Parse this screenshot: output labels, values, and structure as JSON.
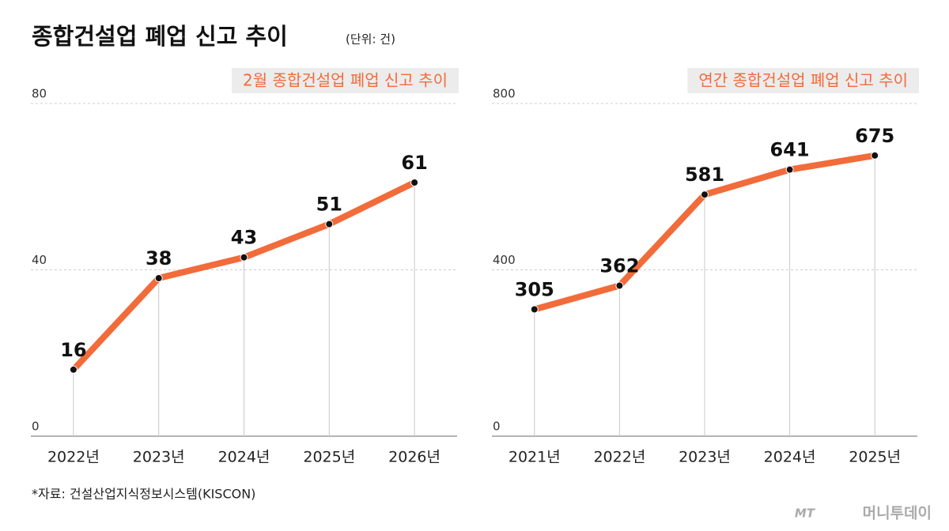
{
  "title": "종합건설업 폐업 신고 추이",
  "unit": "(단위: 건)",
  "chart_data": [
    {
      "type": "line",
      "title": "2월 종합건설업 폐업 신고 추이",
      "categories": [
        "2022년",
        "2023년",
        "2024년",
        "2025년",
        "2026년"
      ],
      "values": [
        16,
        38,
        43,
        51,
        61
      ],
      "color": "#f26b3a",
      "marker_color": "#111111",
      "ylim": [
        0,
        80
      ],
      "yticks": [
        0,
        40,
        80
      ],
      "grid": true
    },
    {
      "type": "line",
      "title": "연간 종합건설업 폐업 신고 추이",
      "categories": [
        "2021년",
        "2022년",
        "2023년",
        "2024년",
        "2025년"
      ],
      "values": [
        305,
        362,
        581,
        641,
        675
      ],
      "color": "#f26b3a",
      "marker_color": "#111111",
      "ylim": [
        0,
        800
      ],
      "yticks": [
        0,
        400,
        800
      ],
      "grid": true
    }
  ],
  "source": "*자료: 건설산업지식정보시스템(KISCON)",
  "logo": "MT",
  "brand": "머니투데이"
}
